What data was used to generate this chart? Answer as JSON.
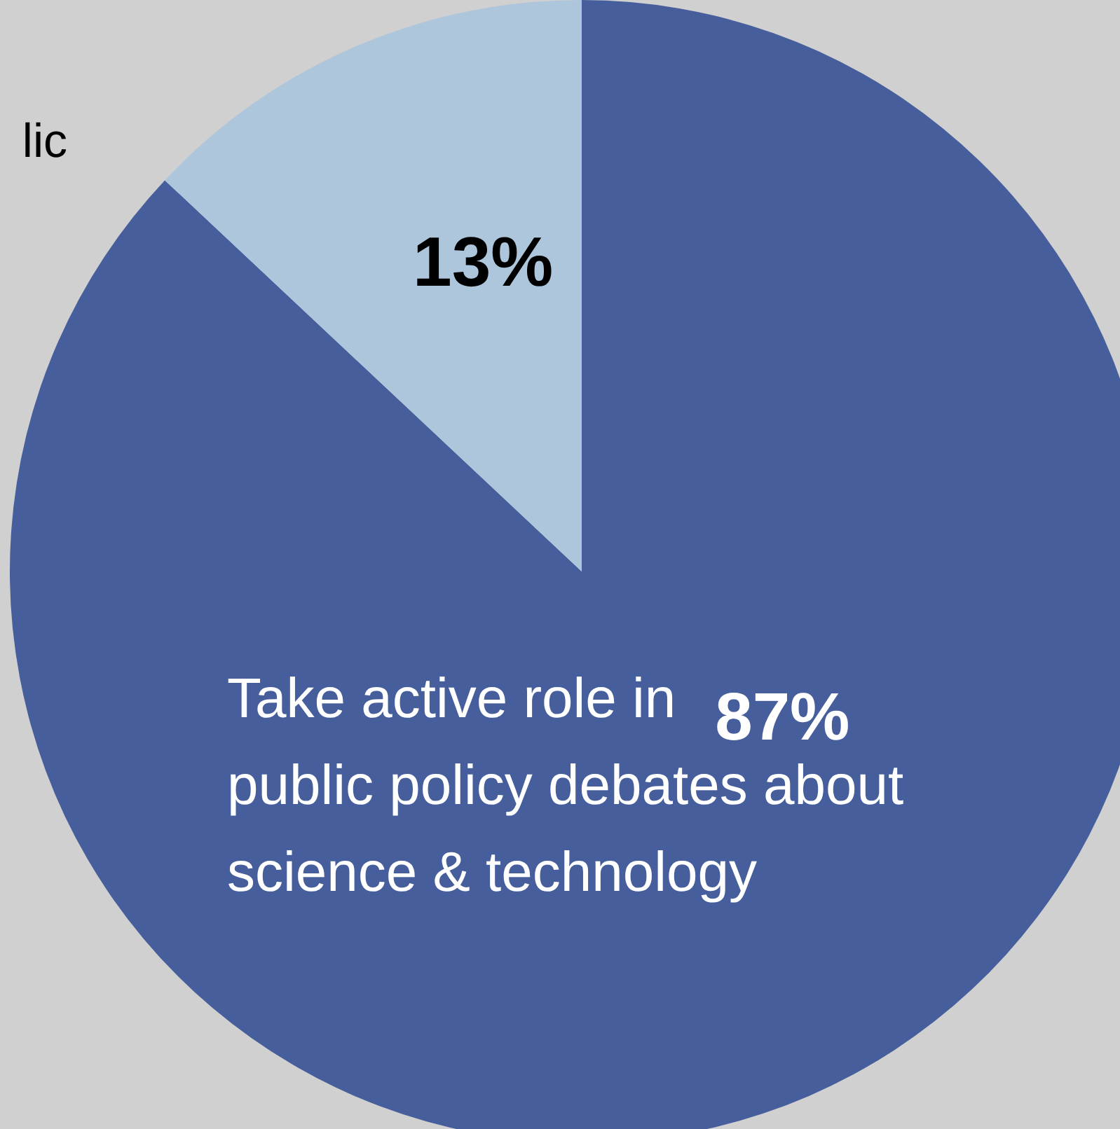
{
  "chart_data": {
    "type": "pie",
    "categories": [
      "Take active role in public policy debates about science & technology",
      null
    ],
    "values": [
      87,
      13
    ],
    "colors": [
      "#465e9b",
      "#adc6dc"
    ],
    "value_labels": [
      "87%",
      "13%"
    ],
    "legend": false,
    "annotations": [
      "lic"
    ]
  }
}
